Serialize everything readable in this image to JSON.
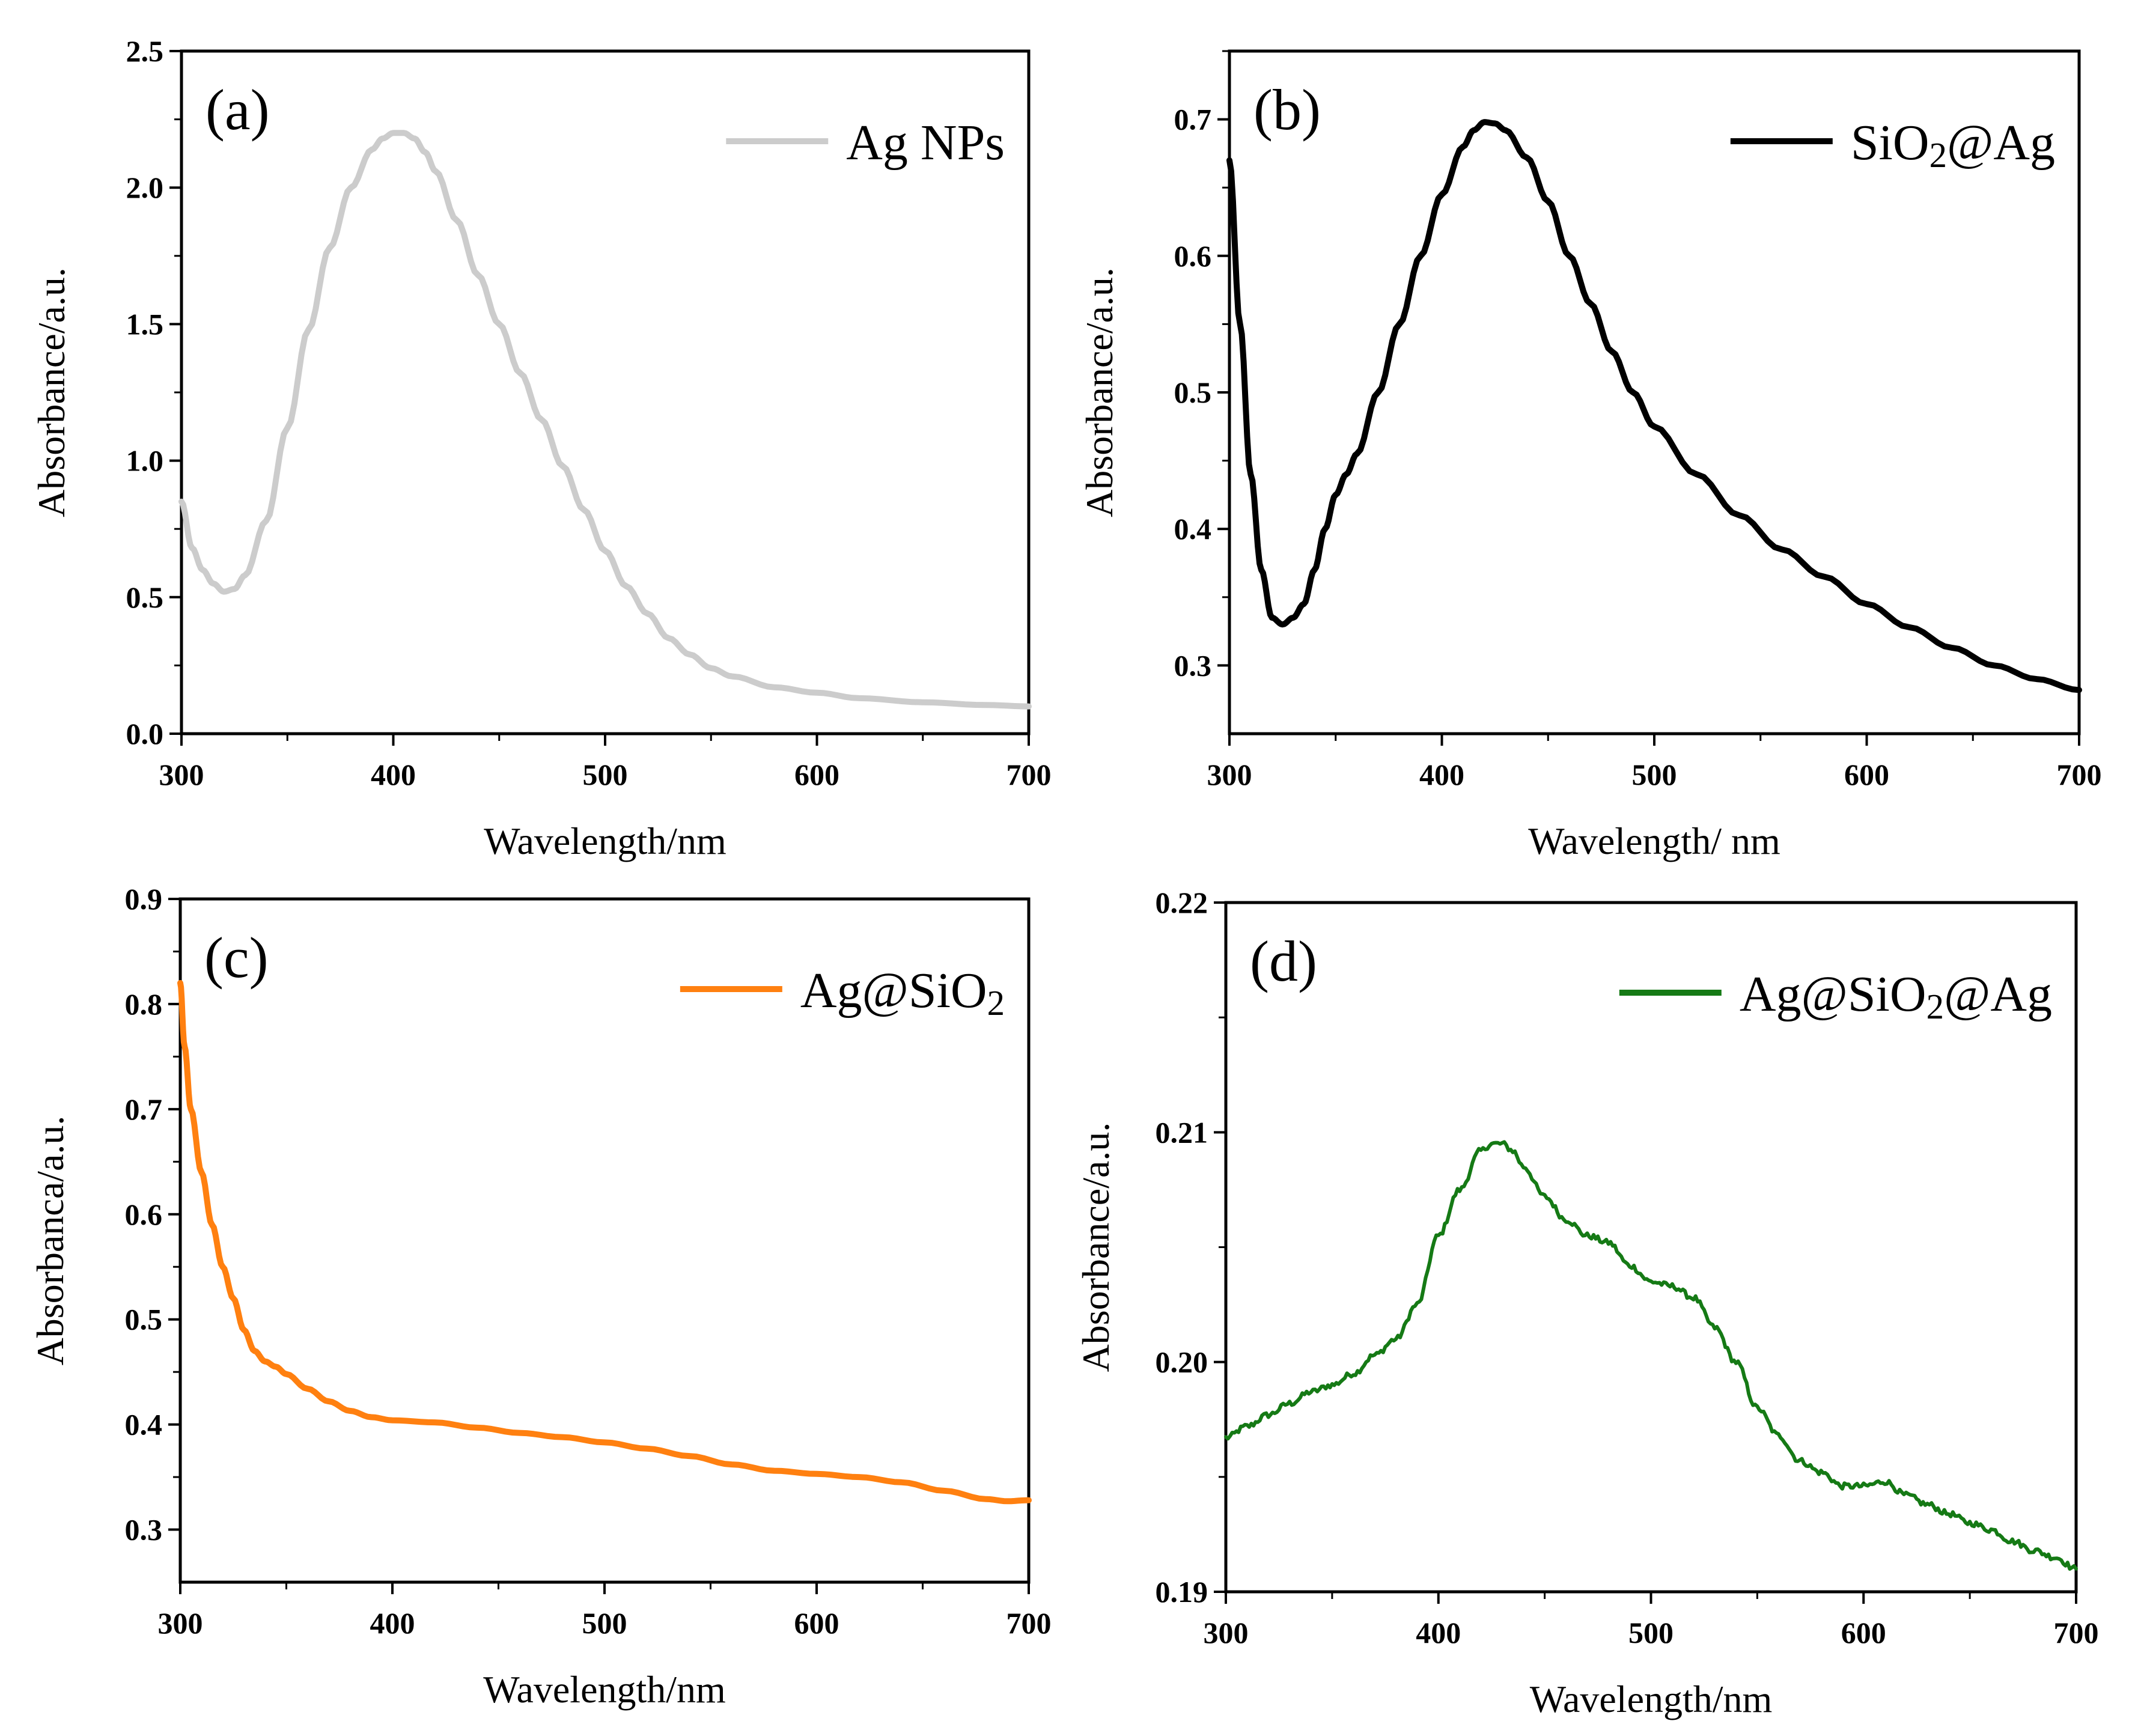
{
  "chart_data": [
    {
      "type": "line",
      "panel_label": "(a)",
      "xlabel": "Wavelength/nm",
      "ylabel": "Absorbance/a.u.",
      "xlim": [
        300,
        700
      ],
      "ylim": [
        0.0,
        2.5
      ],
      "xticks": [
        300,
        400,
        500,
        600,
        700
      ],
      "yticks": [
        "0.0",
        "0.5",
        "1.0",
        "1.5",
        "2.0",
        "2.5"
      ],
      "legend_position": "top-right",
      "series": [
        {
          "name": "Ag NPs",
          "color": "#cccccc",
          "noise": 0,
          "x": [
            300,
            305,
            310,
            315,
            320,
            325,
            330,
            340,
            350,
            360,
            370,
            380,
            390,
            395,
            400,
            405,
            410,
            415,
            420,
            430,
            440,
            450,
            460,
            470,
            480,
            490,
            500,
            510,
            520,
            530,
            540,
            550,
            560,
            580,
            600,
            620,
            650,
            680,
            700
          ],
          "y": [
            0.85,
            0.68,
            0.6,
            0.55,
            0.52,
            0.53,
            0.58,
            0.78,
            1.12,
            1.48,
            1.78,
            2.0,
            2.14,
            2.18,
            2.2,
            2.2,
            2.18,
            2.13,
            2.06,
            1.88,
            1.68,
            1.5,
            1.32,
            1.15,
            0.98,
            0.82,
            0.67,
            0.54,
            0.44,
            0.35,
            0.29,
            0.24,
            0.21,
            0.17,
            0.15,
            0.13,
            0.115,
            0.105,
            0.1
          ]
        }
      ]
    },
    {
      "type": "line",
      "panel_label": "(b)",
      "xlabel": "Wavelength/ nm",
      "ylabel": "Absorbance/a.u.",
      "xlim": [
        300,
        700
      ],
      "ylim": [
        0.25,
        0.75
      ],
      "xticks": [
        300,
        400,
        500,
        600,
        700
      ],
      "yticks": [
        "0.3",
        "0.4",
        "0.5",
        "0.6",
        "0.7"
      ],
      "legend_position": "top-right",
      "series": [
        {
          "name": "SiO2@Ag",
          "color": "#000000",
          "noise": 0,
          "x": [
            300,
            305,
            310,
            315,
            320,
            325,
            330,
            335,
            340,
            345,
            350,
            355,
            360,
            370,
            380,
            390,
            400,
            410,
            415,
            420,
            425,
            430,
            440,
            450,
            460,
            470,
            480,
            490,
            500,
            520,
            540,
            560,
            580,
            600,
            620,
            640,
            660,
            680,
            700
          ],
          "y": [
            0.67,
            0.55,
            0.44,
            0.37,
            0.335,
            0.33,
            0.335,
            0.345,
            0.37,
            0.4,
            0.425,
            0.44,
            0.455,
            0.5,
            0.55,
            0.6,
            0.645,
            0.68,
            0.692,
            0.698,
            0.697,
            0.692,
            0.672,
            0.64,
            0.6,
            0.565,
            0.53,
            0.5,
            0.475,
            0.44,
            0.41,
            0.385,
            0.365,
            0.345,
            0.328,
            0.313,
            0.3,
            0.29,
            0.282
          ]
        }
      ]
    },
    {
      "type": "line",
      "panel_label": "(c)",
      "xlabel": "Wavelength/nm",
      "ylabel": "Absorbanca/a.u.",
      "xlim": [
        300,
        700
      ],
      "ylim": [
        0.25,
        0.9
      ],
      "xticks": [
        300,
        400,
        500,
        600,
        700
      ],
      "yticks": [
        "0.3",
        "0.4",
        "0.5",
        "0.6",
        "0.7",
        "0.8",
        "0.9"
      ],
      "legend_position": "top-right",
      "series": [
        {
          "name": "Ag@SiO2",
          "color": "#ff8010",
          "noise": 0,
          "x": [
            300,
            302,
            305,
            310,
            315,
            320,
            325,
            330,
            335,
            340,
            345,
            350,
            360,
            370,
            380,
            390,
            400,
            420,
            440,
            460,
            480,
            500,
            520,
            540,
            560,
            580,
            600,
            620,
            640,
            660,
            680,
            690,
            700
          ],
          "y": [
            0.82,
            0.76,
            0.7,
            0.64,
            0.59,
            0.55,
            0.52,
            0.49,
            0.47,
            0.46,
            0.455,
            0.448,
            0.434,
            0.422,
            0.413,
            0.407,
            0.404,
            0.402,
            0.397,
            0.392,
            0.388,
            0.383,
            0.377,
            0.37,
            0.362,
            0.356,
            0.353,
            0.35,
            0.345,
            0.337,
            0.329,
            0.327,
            0.328
          ]
        }
      ]
    },
    {
      "type": "line",
      "panel_label": "(d)",
      "xlabel": "Wavelength/nm",
      "ylabel": "Absorbance/a.u.",
      "xlim": [
        300,
        700
      ],
      "ylim": [
        0.19,
        0.22
      ],
      "xticks": [
        300,
        400,
        500,
        600,
        700
      ],
      "yticks": [
        "0.19",
        "0.20",
        "0.21",
        "0.22"
      ],
      "legend_position": "top-right",
      "series": [
        {
          "name": "Ag@SiO2@Ag",
          "color": "#157a15",
          "noise": 0.00013,
          "x": [
            300,
            310,
            320,
            330,
            340,
            350,
            360,
            370,
            380,
            390,
            400,
            410,
            420,
            425,
            430,
            435,
            440,
            450,
            460,
            470,
            480,
            490,
            500,
            510,
            520,
            530,
            540,
            550,
            560,
            570,
            580,
            590,
            600,
            610,
            620,
            630,
            640,
            650,
            660,
            670,
            680,
            690,
            700
          ],
          "y": [
            0.1967,
            0.1972,
            0.1977,
            0.1982,
            0.1987,
            0.199,
            0.1995,
            0.2003,
            0.201,
            0.2025,
            0.2055,
            0.2075,
            0.2092,
            0.2095,
            0.2095,
            0.2092,
            0.2085,
            0.2072,
            0.2062,
            0.2055,
            0.2052,
            0.2042,
            0.2035,
            0.2033,
            0.2028,
            0.2015,
            0.2,
            0.198,
            0.1968,
            0.1957,
            0.1952,
            0.1946,
            0.1946,
            0.1948,
            0.1942,
            0.1938,
            0.1934,
            0.193,
            0.1927,
            0.1922,
            0.1918,
            0.1915,
            0.191
          ]
        }
      ]
    }
  ]
}
